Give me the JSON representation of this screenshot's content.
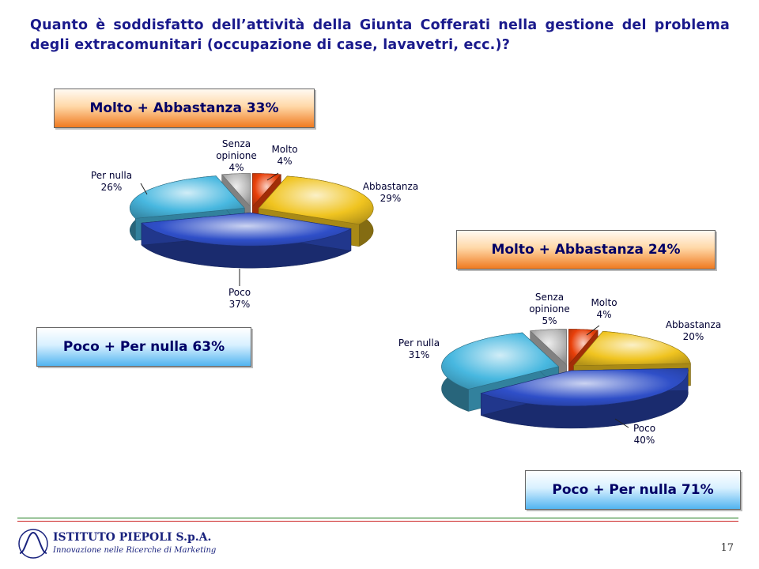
{
  "title": "Quanto è soddisfatto dell’attività della Giunta Cofferati nella gestione del problema degli extracomunitari (occupazione di case, lavavetri, ecc.)?",
  "summary_boxes": {
    "chart1_positive": "Molto + Abbastanza 33%",
    "chart1_negative": "Poco + Per nulla 63%",
    "chart2_positive": "Molto + Abbastanza 24%",
    "chart2_negative": "Poco + Per nulla 71%"
  },
  "colors": {
    "molto": "#e8400a",
    "abbastanza": "#f0c420",
    "poco": "#2f4fc8",
    "per_nulla": "#48b8e0",
    "senza_opinione": "#b8b8b8",
    "title": "#1a1a8c"
  },
  "chart_data": [
    {
      "type": "pie",
      "title": "",
      "categories": [
        "Molto",
        "Abbastanza",
        "Poco",
        "Per nulla",
        "Senza opinione"
      ],
      "values": [
        4,
        29,
        37,
        26,
        4
      ],
      "value_labels": [
        "4%",
        "29%",
        "37%",
        "26%",
        "4%"
      ]
    },
    {
      "type": "pie",
      "title": "",
      "categories": [
        "Molto",
        "Abbastanza",
        "Poco",
        "Per nulla",
        "Senza opinione"
      ],
      "values": [
        4,
        20,
        40,
        31,
        5
      ],
      "value_labels": [
        "4%",
        "20%",
        "40%",
        "31%",
        "5%"
      ]
    }
  ],
  "footer": {
    "logo_name": "ISTITUTO PIEPOLI S.p.A.",
    "logo_tagline": "Innovazione nelle Ricerche di Marketing",
    "page_number": "17"
  }
}
